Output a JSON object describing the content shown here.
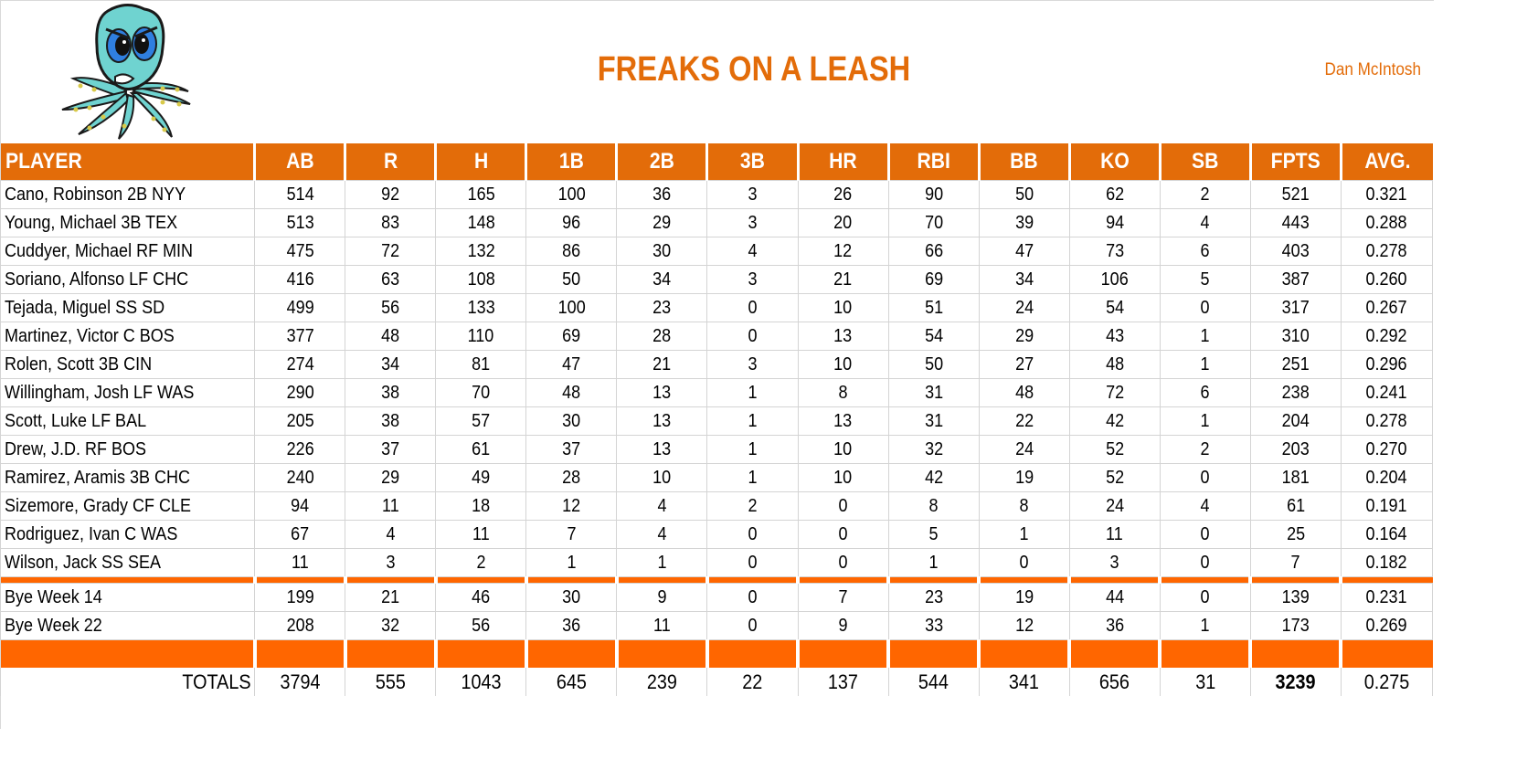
{
  "header": {
    "title": "FREAKS ON A LEASH",
    "owner": "Dan McIntosh",
    "logo_icon": "angry-octopus-mascot"
  },
  "colors": {
    "accent": "#e36c09",
    "bar": "#ff6600",
    "grid": "#d4d4d4"
  },
  "table": {
    "columns": [
      "PLAYER",
      "AB",
      "R",
      "H",
      "1B",
      "2B",
      "3B",
      "HR",
      "RBI",
      "BB",
      "KO",
      "SB",
      "FPTS",
      "AVG."
    ],
    "rows": [
      [
        "Cano, Robinson 2B NYY",
        "514",
        "92",
        "165",
        "100",
        "36",
        "3",
        "26",
        "90",
        "50",
        "62",
        "2",
        "521",
        "0.321"
      ],
      [
        "Young, Michael 3B TEX",
        "513",
        "83",
        "148",
        "96",
        "29",
        "3",
        "20",
        "70",
        "39",
        "94",
        "4",
        "443",
        "0.288"
      ],
      [
        "Cuddyer, Michael RF MIN",
        "475",
        "72",
        "132",
        "86",
        "30",
        "4",
        "12",
        "66",
        "47",
        "73",
        "6",
        "403",
        "0.278"
      ],
      [
        "Soriano, Alfonso LF CHC",
        "416",
        "63",
        "108",
        "50",
        "34",
        "3",
        "21",
        "69",
        "34",
        "106",
        "5",
        "387",
        "0.260"
      ],
      [
        "Tejada, Miguel SS SD",
        "499",
        "56",
        "133",
        "100",
        "23",
        "0",
        "10",
        "51",
        "24",
        "54",
        "0",
        "317",
        "0.267"
      ],
      [
        "Martinez, Victor C BOS",
        "377",
        "48",
        "110",
        "69",
        "28",
        "0",
        "13",
        "54",
        "29",
        "43",
        "1",
        "310",
        "0.292"
      ],
      [
        "Rolen, Scott 3B CIN",
        "274",
        "34",
        "81",
        "47",
        "21",
        "3",
        "10",
        "50",
        "27",
        "48",
        "1",
        "251",
        "0.296"
      ],
      [
        "Willingham, Josh LF WAS",
        "290",
        "38",
        "70",
        "48",
        "13",
        "1",
        "8",
        "31",
        "48",
        "72",
        "6",
        "238",
        "0.241"
      ],
      [
        "Scott, Luke LF BAL",
        "205",
        "38",
        "57",
        "30",
        "13",
        "1",
        "13",
        "31",
        "22",
        "42",
        "1",
        "204",
        "0.278"
      ],
      [
        "Drew, J.D. RF BOS",
        "226",
        "37",
        "61",
        "37",
        "13",
        "1",
        "10",
        "32",
        "24",
        "52",
        "2",
        "203",
        "0.270"
      ],
      [
        "Ramirez, Aramis 3B CHC",
        "240",
        "29",
        "49",
        "28",
        "10",
        "1",
        "10",
        "42",
        "19",
        "52",
        "0",
        "181",
        "0.204"
      ],
      [
        "Sizemore, Grady CF CLE",
        "94",
        "11",
        "18",
        "12",
        "4",
        "2",
        "0",
        "8",
        "8",
        "24",
        "4",
        "61",
        "0.191"
      ],
      [
        "Rodriguez, Ivan C WAS",
        "67",
        "4",
        "11",
        "7",
        "4",
        "0",
        "0",
        "5",
        "1",
        "11",
        "0",
        "25",
        "0.164"
      ],
      [
        "Wilson, Jack SS SEA",
        "11",
        "3",
        "2",
        "1",
        "1",
        "0",
        "0",
        "1",
        "0",
        "3",
        "0",
        "7",
        "0.182"
      ]
    ],
    "bye_rows": [
      [
        "Bye Week 14",
        "199",
        "21",
        "46",
        "30",
        "9",
        "0",
        "7",
        "23",
        "19",
        "44",
        "0",
        "139",
        "0.231"
      ],
      [
        "Bye Week 22",
        "208",
        "32",
        "56",
        "36",
        "11",
        "0",
        "9",
        "33",
        "12",
        "36",
        "1",
        "173",
        "0.269"
      ]
    ],
    "totals": [
      "TOTALS",
      "3794",
      "555",
      "1043",
      "645",
      "239",
      "22",
      "137",
      "544",
      "341",
      "656",
      "31",
      "3239",
      "0.275"
    ]
  }
}
